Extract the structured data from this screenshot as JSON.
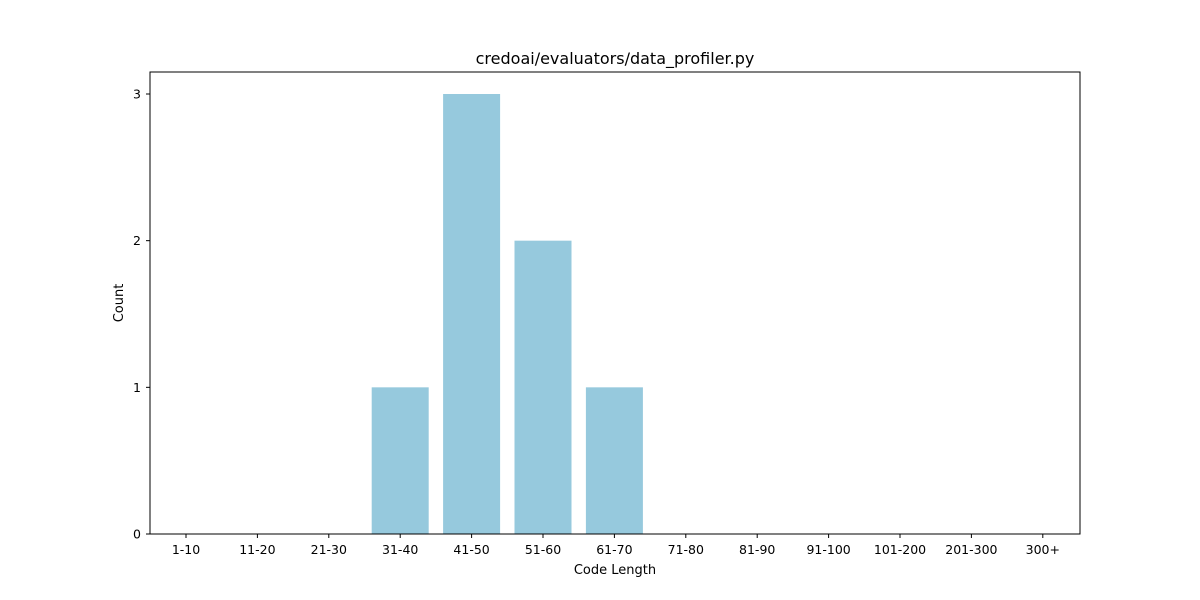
{
  "chart_data": {
    "type": "bar",
    "title": "credoai/evaluators/data_profiler.py",
    "xlabel": "Code Length",
    "ylabel": "Count",
    "categories": [
      "1-10",
      "11-20",
      "21-30",
      "31-40",
      "41-50",
      "51-60",
      "61-70",
      "71-80",
      "81-90",
      "91-100",
      "101-200",
      "201-300",
      "300+"
    ],
    "values": [
      0,
      0,
      0,
      1,
      3,
      2,
      1,
      0,
      0,
      0,
      0,
      0,
      0
    ],
    "ylim": [
      0,
      3.15
    ],
    "yticks": [
      "0",
      "1",
      "2",
      "3"
    ],
    "grid": false,
    "legend": "none",
    "bar_color": "#96c9dd"
  }
}
